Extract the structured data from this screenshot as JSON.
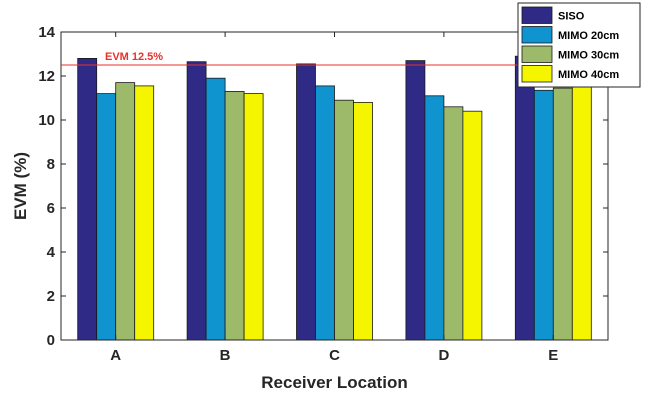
{
  "chart_data": {
    "type": "bar",
    "categories": [
      "A",
      "B",
      "C",
      "D",
      "E"
    ],
    "series": [
      {
        "name": "SISO",
        "color": "#2e2a86",
        "values": [
          12.8,
          12.65,
          12.55,
          12.7,
          12.9
        ]
      },
      {
        "name": "MIMO 20cm",
        "color": "#0f94cf",
        "values": [
          11.2,
          11.9,
          11.55,
          11.1,
          11.35
        ]
      },
      {
        "name": "MIMO 30cm",
        "color": "#9dba6a",
        "values": [
          11.7,
          11.3,
          10.9,
          10.6,
          11.45
        ]
      },
      {
        "name": "MIMO 40cm",
        "color": "#f5f500",
        "values": [
          11.55,
          11.2,
          10.8,
          10.4,
          11.7
        ]
      }
    ],
    "title": "",
    "xlabel": "Receiver Location",
    "ylabel": "EVM (%)",
    "ylim": [
      0,
      14
    ],
    "yticks": [
      0,
      2,
      4,
      6,
      8,
      10,
      12,
      14
    ],
    "grid": false,
    "legend": "top-right",
    "reference_line": {
      "value": 12.5,
      "label": "EVM 12.5%",
      "color": "#e8312c"
    }
  }
}
